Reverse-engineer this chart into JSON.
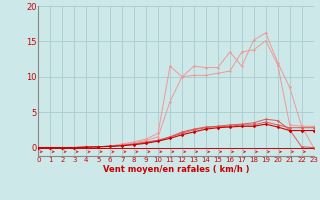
{
  "x": [
    0,
    1,
    2,
    3,
    4,
    5,
    6,
    7,
    8,
    9,
    10,
    11,
    12,
    13,
    14,
    15,
    16,
    17,
    18,
    19,
    20,
    21,
    22,
    23
  ],
  "line_gust_light": [
    0,
    0,
    0,
    0,
    0.05,
    0.1,
    0.2,
    0.5,
    0.8,
    1.2,
    2.0,
    11.5,
    10.0,
    11.5,
    11.3,
    11.3,
    13.5,
    11.5,
    15.2,
    16.2,
    12.0,
    8.5,
    3.0,
    0.0
  ],
  "line_gust_mid": [
    0,
    0,
    0,
    0,
    0.05,
    0.1,
    0.2,
    0.4,
    0.7,
    1.0,
    1.5,
    6.5,
    10.0,
    10.2,
    10.2,
    10.5,
    10.8,
    13.5,
    13.8,
    15.1,
    11.7,
    3.2,
    3.0,
    3.0
  ],
  "line_mean3": [
    0,
    0,
    0,
    0,
    0.05,
    0.1,
    0.2,
    0.3,
    0.5,
    0.8,
    1.0,
    1.5,
    2.0,
    2.5,
    2.8,
    3.0,
    3.2,
    3.3,
    3.5,
    4.0,
    3.8,
    2.5,
    0.1,
    0.0
  ],
  "line_mean2": [
    0,
    0,
    0,
    0,
    0.05,
    0.1,
    0.2,
    0.3,
    0.5,
    0.7,
    1.0,
    1.5,
    2.2,
    2.6,
    2.9,
    3.0,
    3.0,
    3.2,
    3.2,
    3.6,
    3.2,
    2.8,
    2.8,
    2.8
  ],
  "line_mean1": [
    0,
    0,
    0,
    0,
    0.05,
    0.1,
    0.15,
    0.25,
    0.4,
    0.6,
    0.9,
    1.3,
    1.8,
    2.2,
    2.6,
    2.8,
    2.9,
    3.0,
    3.0,
    3.3,
    2.9,
    2.4,
    2.4,
    2.4
  ],
  "line_zero": [
    0,
    0,
    0,
    0,
    0,
    0,
    0,
    0,
    0,
    0,
    0,
    0,
    0,
    0,
    0,
    0,
    0,
    0,
    0,
    0,
    0,
    0,
    0,
    0
  ],
  "ylim": [
    0,
    20
  ],
  "xlim": [
    0,
    23
  ],
  "yticks": [
    0,
    5,
    10,
    15,
    20
  ],
  "xticks": [
    0,
    1,
    2,
    3,
    4,
    5,
    6,
    7,
    8,
    9,
    10,
    11,
    12,
    13,
    14,
    15,
    16,
    17,
    18,
    19,
    20,
    21,
    22,
    23
  ],
  "xlabel": "Vent moyen/en rafales ( km/h )",
  "bg_color": "#cce8e8",
  "grid_color": "#aacccc",
  "line_color_dark": "#cc0000",
  "line_color_mid": "#dd5555",
  "line_color_light": "#ee9999",
  "arrow_color": "#cc2222",
  "xlabel_color": "#cc0000",
  "tick_color": "#cc0000",
  "ylabel_color": "#cc0000",
  "spine_color": "#888888"
}
